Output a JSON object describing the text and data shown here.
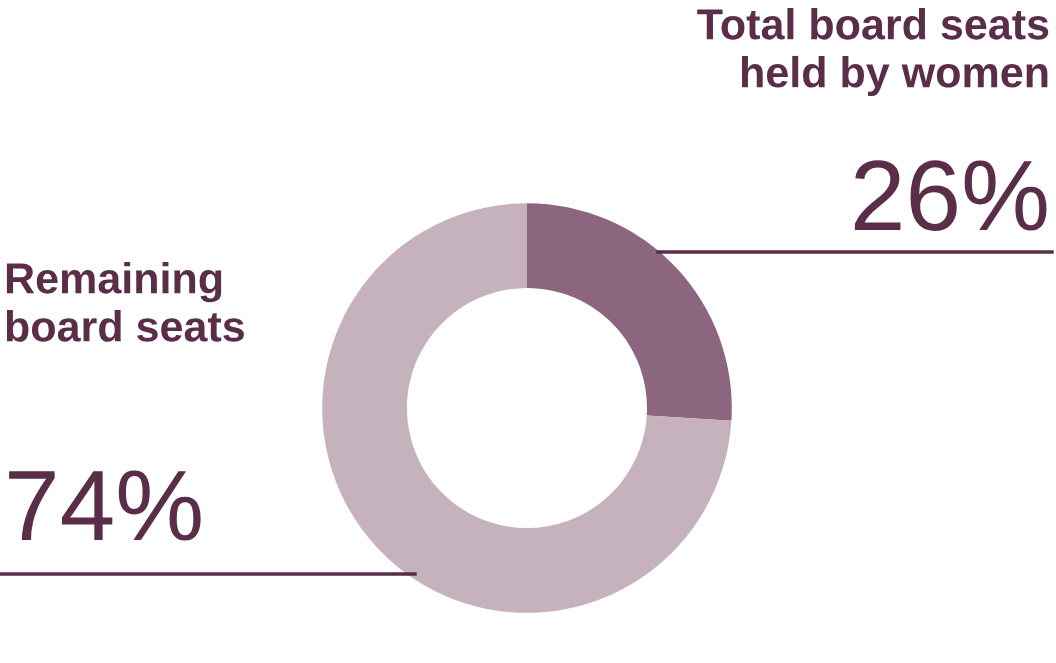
{
  "chart_data": {
    "type": "donut",
    "categories": [
      "Total board seats held by women",
      "Remaining board seats"
    ],
    "values": [
      26,
      74
    ],
    "value_labels": [
      "26%",
      "74%"
    ],
    "colors": [
      "#8c667e",
      "#c6b2bd"
    ],
    "legend": false
  }
}
